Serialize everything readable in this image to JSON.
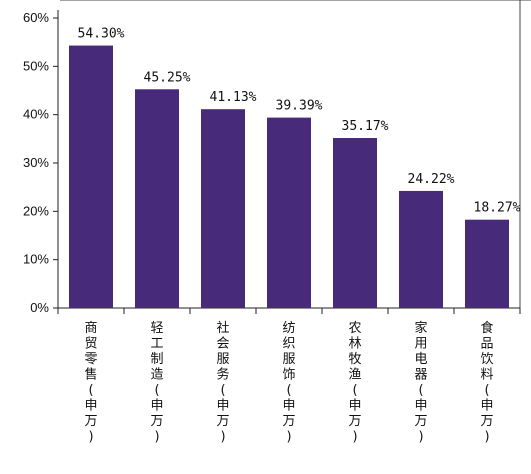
{
  "chart_data": {
    "type": "bar",
    "categories": [
      "商贸零售(申万)",
      "轻工制造(申万)",
      "社会服务(申万)",
      "纺织服饰(申万)",
      "农林牧渔(申万)",
      "家用电器(申万)",
      "食品饮料(申万)"
    ],
    "values": [
      54.3,
      45.25,
      41.13,
      39.39,
      35.17,
      24.22,
      18.27
    ],
    "data_labels": [
      "54.30%",
      "45.25%",
      "41.13%",
      "39.39%",
      "35.17%",
      "24.22%",
      "18.27%"
    ],
    "y_ticks": [
      "0%",
      "10%",
      "20%",
      "30%",
      "40%",
      "50%",
      "60%"
    ],
    "ylim": [
      0,
      60
    ],
    "grid": false,
    "legend": "none",
    "bar_color": "#472a7a"
  }
}
